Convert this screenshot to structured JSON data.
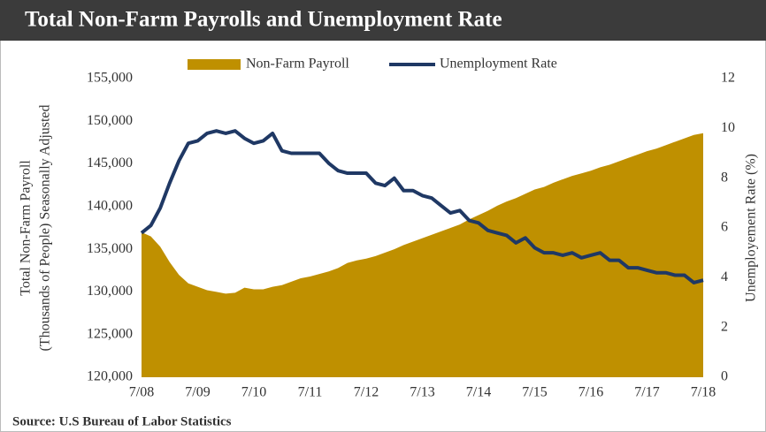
{
  "chart_data": {
    "type": "area-line",
    "title": "Total Non-Farm Payrolls and Unemployment Rate",
    "source": "Source:  U.S Bureau of Labor Statistics",
    "ylabel": [
      "Total Non-Farm Payroll",
      "(Thousands of People) Seasonally Adjusted"
    ],
    "y2label": "Unemployement Rate (%)",
    "categories": [
      "7/08",
      null,
      null,
      null,
      null,
      null,
      "7/09",
      null,
      null,
      null,
      null,
      null,
      "7/10",
      null,
      null,
      null,
      null,
      null,
      "7/11",
      null,
      null,
      null,
      null,
      null,
      "7/12",
      null,
      null,
      null,
      null,
      null,
      "7/13",
      null,
      null,
      null,
      null,
      null,
      "7/14",
      null,
      null,
      null,
      null,
      null,
      "7/15",
      null,
      null,
      null,
      null,
      null,
      "7/16",
      null,
      null,
      null,
      null,
      null,
      "7/17",
      null,
      null,
      null,
      null,
      null,
      "7/18"
    ],
    "series": [
      {
        "name": "Non-Farm Payroll",
        "color": "#bf9000",
        "kind": "area",
        "axis": "y",
        "values": [
          137000,
          136500,
          135300,
          133500,
          132000,
          131000,
          130600,
          130200,
          130000,
          129800,
          129900,
          130500,
          130300,
          130300,
          130600,
          130800,
          131200,
          131600,
          131800,
          132100,
          132400,
          132800,
          133400,
          133700,
          133900,
          134200,
          134600,
          135000,
          135500,
          135900,
          136300,
          136700,
          137100,
          137500,
          137900,
          138500,
          139000,
          139500,
          140100,
          140600,
          141000,
          141500,
          142000,
          142300,
          142800,
          143200,
          143600,
          143900,
          144200,
          144600,
          144900,
          145300,
          145700,
          146100,
          146500,
          146800,
          147200,
          147600,
          148000,
          148400,
          148600
        ]
      },
      {
        "name": "Unemployment Rate",
        "color": "#1f3864",
        "kind": "line",
        "axis": "y2",
        "values": [
          5.8,
          6.1,
          6.8,
          7.8,
          8.7,
          9.4,
          9.5,
          9.8,
          9.9,
          9.8,
          9.9,
          9.6,
          9.4,
          9.5,
          9.8,
          9.1,
          9.0,
          9.0,
          9.0,
          9.0,
          8.6,
          8.3,
          8.2,
          8.2,
          8.2,
          7.8,
          7.7,
          8.0,
          7.5,
          7.5,
          7.3,
          7.2,
          6.9,
          6.6,
          6.7,
          6.3,
          6.2,
          5.9,
          5.8,
          5.7,
          5.4,
          5.6,
          5.2,
          5.0,
          5.0,
          4.9,
          5.0,
          4.8,
          4.9,
          5.0,
          4.7,
          4.7,
          4.4,
          4.4,
          4.3,
          4.2,
          4.2,
          4.1,
          4.1,
          3.8,
          3.9
        ]
      }
    ],
    "ylim": [
      120000,
      155000
    ],
    "yticks": [
      {
        "value": 120000,
        "label": "120,000"
      },
      {
        "value": 125000,
        "label": "125,000"
      },
      {
        "value": 130000,
        "label": "130,000"
      },
      {
        "value": 135000,
        "label": "135,000"
      },
      {
        "value": 140000,
        "label": "140,000"
      },
      {
        "value": 145000,
        "label": "145,000"
      },
      {
        "value": 150000,
        "label": "150,000"
      },
      {
        "value": 155000,
        "label": "155,000"
      }
    ],
    "y2lim": [
      0,
      12
    ],
    "y2ticks": [
      0,
      2,
      4,
      6,
      8,
      10,
      12
    ],
    "legend": "top",
    "grid": false
  }
}
